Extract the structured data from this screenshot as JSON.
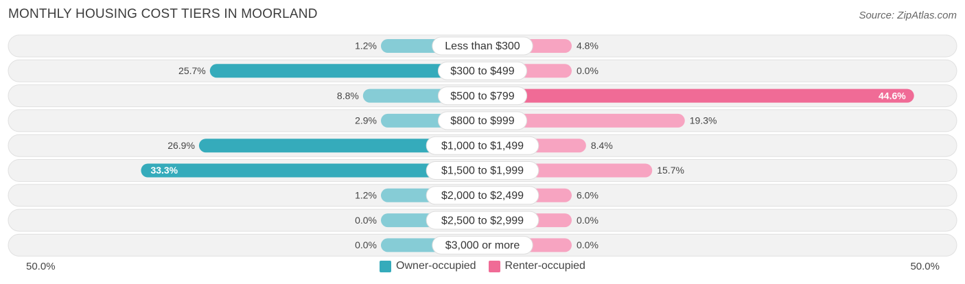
{
  "header": {
    "title": "MONTHLY HOUSING COST TIERS IN MOORLAND",
    "source": "Source: ZipAtlas.com"
  },
  "axis": {
    "left_label": "50.0%",
    "right_label": "50.0%"
  },
  "legend": {
    "owner_label": "Owner-occupied",
    "renter_label": "Renter-occupied"
  },
  "colors": {
    "owner_strong": "#35abbb",
    "owner_light": "#86ccd6",
    "renter_strong": "#f06b96",
    "renter_light": "#f7a4c1",
    "row_bg": "#f2f2f2",
    "row_border": "#e0e0e0"
  },
  "chart_data": {
    "type": "bar",
    "orientation": "horizontal-diverging",
    "title": "MONTHLY HOUSING COST TIERS IN MOORLAND",
    "categories": [
      "Less than $300",
      "$300 to $499",
      "$500 to $799",
      "$800 to $999",
      "$1,000 to $1,499",
      "$1,500 to $1,999",
      "$2,000 to $2,499",
      "$2,500 to $2,999",
      "$3,000 or more"
    ],
    "series": [
      {
        "name": "Owner-occupied",
        "values": [
          1.2,
          25.7,
          8.8,
          2.9,
          26.9,
          33.3,
          1.2,
          0.0,
          0.0
        ],
        "labels": [
          "1.2%",
          "25.7%",
          "8.8%",
          "2.9%",
          "26.9%",
          "33.3%",
          "1.2%",
          "0.0%",
          "0.0%"
        ]
      },
      {
        "name": "Renter-occupied",
        "values": [
          4.8,
          0.0,
          44.6,
          19.3,
          8.4,
          15.7,
          6.0,
          0.0,
          0.0
        ],
        "labels": [
          "4.8%",
          "0.0%",
          "44.6%",
          "19.3%",
          "8.4%",
          "15.7%",
          "6.0%",
          "0.0%",
          "0.0%"
        ]
      }
    ],
    "xlim": [
      -50,
      50
    ],
    "legend_position": "bottom-center"
  }
}
